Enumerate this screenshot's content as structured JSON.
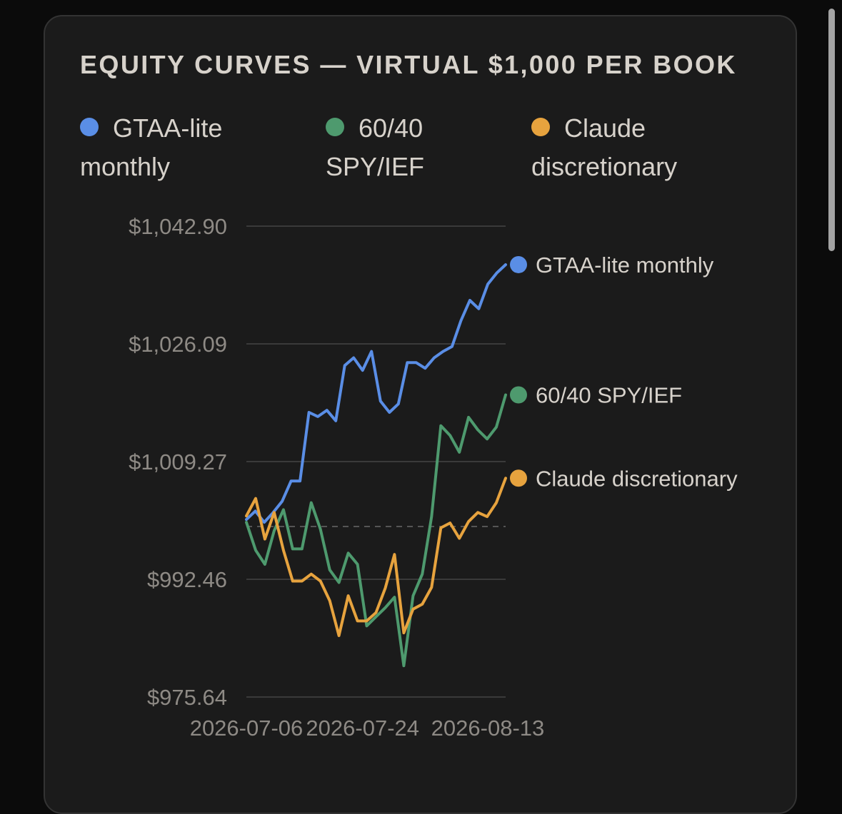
{
  "title": "EQUITY CURVES — VIRTUAL $1,000 PER BOOK",
  "legend": [
    {
      "line1": "GTAA-lite",
      "line2": "monthly",
      "color": "#5a8ee6"
    },
    {
      "line1": "60/40",
      "line2": "SPY/IEF",
      "color": "#4e9a6e"
    },
    {
      "line1": "Claude",
      "line2": "discretionary",
      "color": "#e7a33e"
    }
  ],
  "chart_data": {
    "type": "line",
    "yticks": [
      "$1,042.90",
      "$1,026.09",
      "$1,009.27",
      "$992.46",
      "$975.64"
    ],
    "ytick_values": [
      1042.9,
      1026.09,
      1009.27,
      992.46,
      975.64
    ],
    "ylim": [
      975.64,
      1042.9
    ],
    "xticks": [
      "2026-07-06",
      "2026-07-24",
      "2026-08-13"
    ],
    "xtick_index": [
      0,
      13,
      27
    ],
    "baseline": 1000,
    "series": [
      {
        "name": "GTAA-lite monthly",
        "color": "#5a8ee6",
        "values": [
          1001.0,
          1002.2,
          1000.6,
          1002.0,
          1003.6,
          1006.5,
          1006.5,
          1016.3,
          1015.7,
          1016.6,
          1015.1,
          1023.0,
          1024.1,
          1022.3,
          1025.0,
          1017.9,
          1016.3,
          1017.5,
          1023.4,
          1023.4,
          1022.6,
          1024.1,
          1025.0,
          1025.7,
          1029.4,
          1032.3,
          1031.1,
          1034.6,
          1036.2,
          1037.4
        ]
      },
      {
        "name": "60/40 SPY/IEF",
        "color": "#4e9a6e",
        "values": [
          1000.6,
          996.6,
          994.6,
          999.4,
          1002.4,
          996.8,
          996.8,
          1003.4,
          999.6,
          993.8,
          992.0,
          996.2,
          994.6,
          985.8,
          987.1,
          988.4,
          989.9,
          980.1,
          990.1,
          993.2,
          1001.4,
          1014.4,
          1013.0,
          1010.6,
          1015.6,
          1013.8,
          1012.5,
          1014.2,
          1018.8
        ]
      },
      {
        "name": "Claude discretionary",
        "color": "#e7a33e",
        "values": [
          1001.5,
          1004.0,
          998.2,
          1002.0,
          996.6,
          992.2,
          992.2,
          993.2,
          992.2,
          989.4,
          984.4,
          990.1,
          986.5,
          986.5,
          987.7,
          991.2,
          996.0,
          984.8,
          988.2,
          988.9,
          991.3,
          999.8,
          1000.5,
          998.3,
          1000.7,
          1002.0,
          1001.4,
          1003.4,
          1006.9
        ]
      }
    ]
  }
}
